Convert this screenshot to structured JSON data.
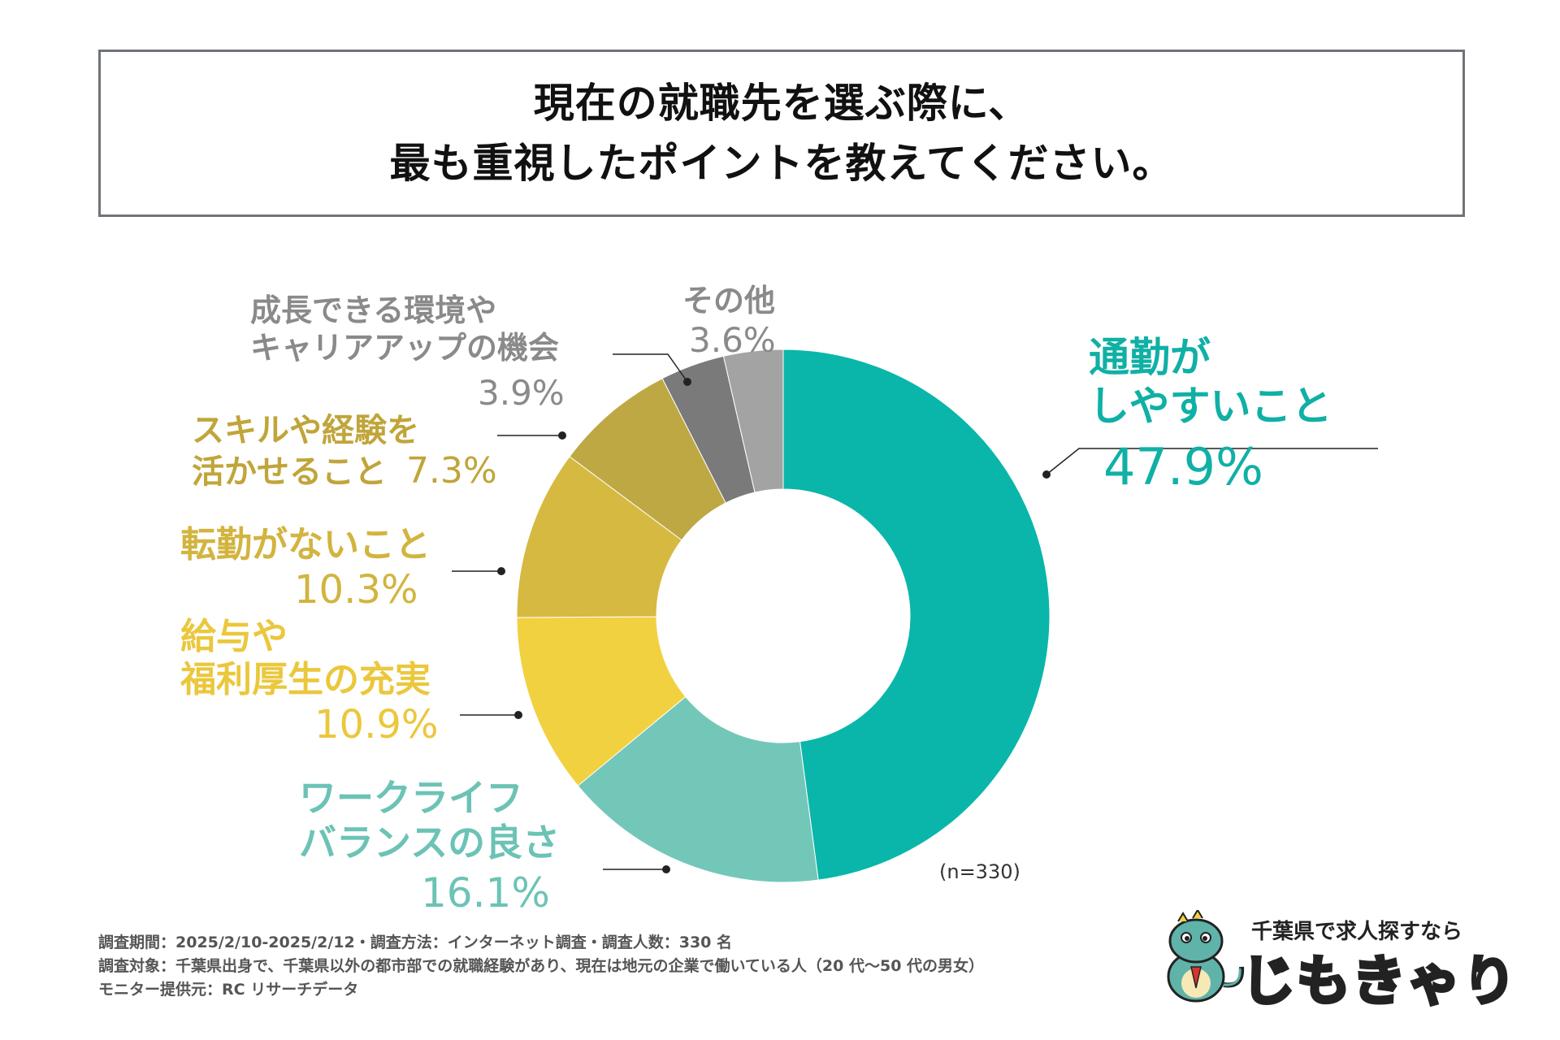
{
  "title": {
    "line1": "現在の就職先を選ぶ際に、",
    "line2": "最も重視したポイントを教えてください。"
  },
  "chart_data": {
    "type": "pie",
    "subtype": "donut",
    "title": "現在の就職先を選ぶ際に、最も重視したポイントを教えてください。",
    "sample_note": "(n=330)",
    "slices": [
      {
        "name": "通勤がしやすいこと",
        "label_lines": [
          "通勤が",
          "しやすいこと"
        ],
        "value": 47.9,
        "value_label": "47.9%",
        "color": "#0ab6a9",
        "label_color": "#10b0a5"
      },
      {
        "name": "ワークライフバランスの良さ",
        "label_lines": [
          "ワークライフ",
          "バランスの良さ"
        ],
        "value": 16.1,
        "value_label": "16.1%",
        "color": "#73c7b9",
        "label_color": "#6cc3b5"
      },
      {
        "name": "給与や福利厚生の充実",
        "label_lines": [
          "給与や",
          "福利厚生の充実"
        ],
        "value": 10.9,
        "value_label": "10.9%",
        "color": "#f2d140",
        "label_color": "#ebc73c"
      },
      {
        "name": "転勤がないこと",
        "label_lines": [
          "転勤がないこと"
        ],
        "value": 10.3,
        "value_label": "10.3%",
        "color": "#d6b940",
        "label_color": "#d2b43f"
      },
      {
        "name": "スキルや経験を活かせること",
        "label_lines": [
          "スキルや経験を",
          "活かせること"
        ],
        "value": 7.3,
        "value_label": "7.3%",
        "color": "#bda843",
        "label_color": "#c0a53a"
      },
      {
        "name": "成長できる環境やキャリアアップの機会",
        "label_lines": [
          "成長できる環境や",
          "キャリアアップの機会"
        ],
        "value": 3.9,
        "value_label": "3.9%",
        "color": "#7a7a7a",
        "label_color": "#8a8a8a"
      },
      {
        "name": "その他",
        "label_lines": [
          "その他"
        ],
        "value": 3.6,
        "value_label": "3.6%",
        "color": "#a3a3a3",
        "label_color": "#8a8a8a"
      }
    ]
  },
  "footer": {
    "line1": "調査期間：2025/2/10-2025/2/12・調査方法：インターネット調査・調査人数：330 名",
    "line2": "調査対象：千葉県出身で、千葉県以外の都市部での就職経験があり、現在は地元の企業で働いている人（20 代〜50 代の男女）",
    "line3": "モニター提供元：RC リサーチデータ"
  },
  "logo": {
    "tagline": "千葉県で求人探すなら",
    "name": "じもきゃり"
  }
}
